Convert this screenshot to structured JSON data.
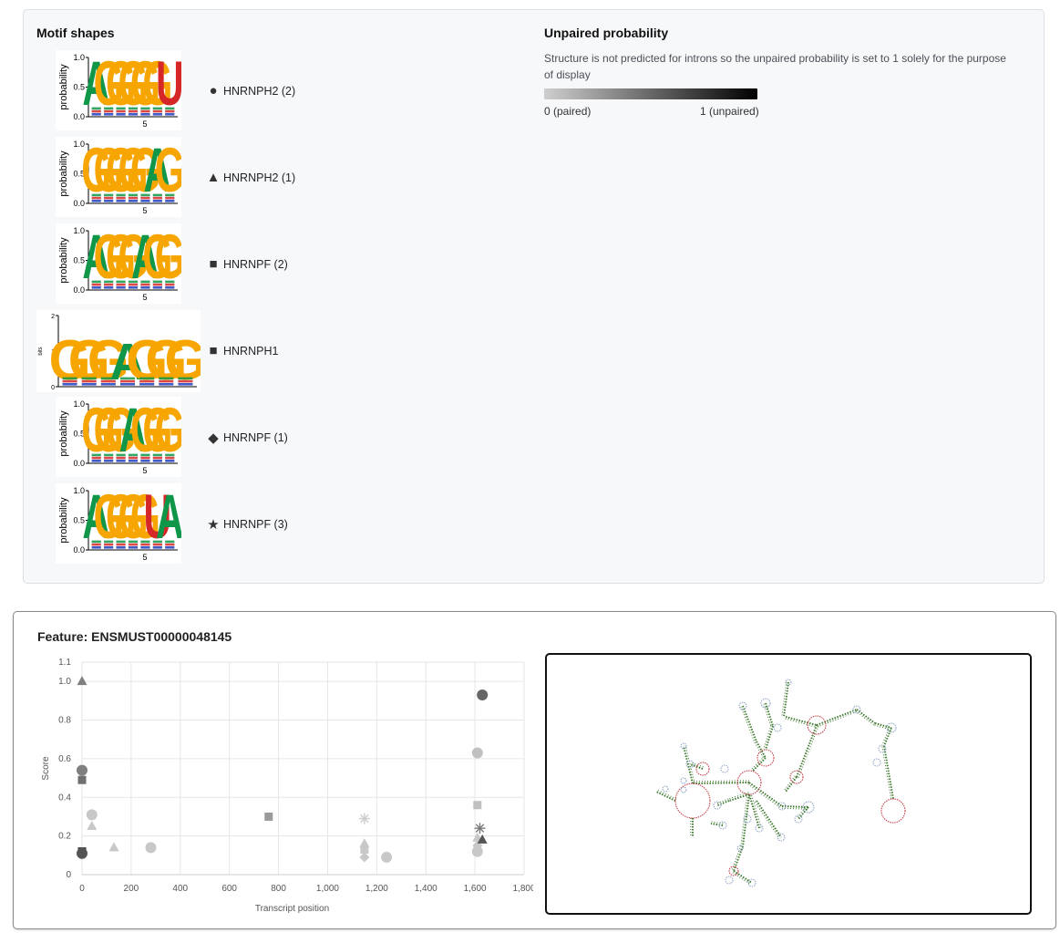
{
  "motif_section": {
    "title": "Motif shapes",
    "motifs": [
      {
        "name": "HNRNPH2 (2)",
        "symbol": "●",
        "logo_type": "probability",
        "axis_label": "probability",
        "ticks": [
          "1.0",
          "0.5",
          "0.0"
        ],
        "x_tick": "5",
        "letters": [
          "A",
          "G",
          "G",
          "G",
          "G",
          "G",
          "U"
        ]
      },
      {
        "name": "HNRNPH2 (1)",
        "symbol": "▲",
        "logo_type": "probability",
        "axis_label": "probability",
        "ticks": [
          "1.0",
          "0.5",
          "0.0"
        ],
        "x_tick": "5",
        "letters": [
          "G",
          "G",
          "G",
          "G",
          "G",
          "A",
          "G"
        ]
      },
      {
        "name": "HNRNPF (2)",
        "symbol": "■",
        "logo_type": "probability",
        "axis_label": "probability",
        "ticks": [
          "1.0",
          "0.5",
          "0.0"
        ],
        "x_tick": "5",
        "letters": [
          "A",
          "G",
          "G",
          "G",
          "A",
          "G",
          "G"
        ]
      },
      {
        "name": "HNRNPH1",
        "symbol": "■",
        "logo_type": "bits",
        "axis_label": "bits",
        "ticks": [
          "2",
          "1",
          "0"
        ],
        "x_tick": "",
        "letters": [
          "G",
          "G",
          "G",
          "A",
          "G",
          "G",
          "G"
        ]
      },
      {
        "name": "HNRNPF (1)",
        "symbol": "◆",
        "logo_type": "probability",
        "axis_label": "probability",
        "ticks": [
          "1.0",
          "0.5",
          "0.0"
        ],
        "x_tick": "5",
        "letters": [
          "G",
          "G",
          "G",
          "A",
          "G",
          "G",
          "G"
        ]
      },
      {
        "name": "HNRNPF (3)",
        "symbol": "★",
        "logo_type": "probability",
        "axis_label": "probability",
        "ticks": [
          "1.0",
          "0.5",
          "0.0"
        ],
        "x_tick": "5",
        "letters": [
          "A",
          "G",
          "G",
          "G",
          "G",
          "U",
          "A"
        ]
      }
    ]
  },
  "unpaired_section": {
    "title": "Unpaired probability",
    "description": "Structure is not predicted for introns so the unpaired probability is set to 1 solely for the purpose of display",
    "min_label": "0 (paired)",
    "max_label": "1 (unpaired)",
    "gradient_start": "#cfcfcf",
    "gradient_end": "#000000"
  },
  "feature": {
    "title": "Feature: ENSMUST00000048145"
  },
  "chart_data": {
    "type": "scatter",
    "xlabel": "Transcript position",
    "ylabel": "Score",
    "xlim": [
      0,
      1800
    ],
    "ylim": [
      0,
      1.1
    ],
    "x_ticks": [
      "0",
      "200",
      "400",
      "600",
      "800",
      "1,000",
      "1,200",
      "1,400",
      "1,600",
      "1,800"
    ],
    "y_ticks": [
      "0",
      "0.2",
      "0.4",
      "0.6",
      "0.8",
      "1.0",
      "1.1"
    ],
    "grid": true,
    "points": [
      {
        "x": 0,
        "y": 1.0,
        "shape": "triangle",
        "color": "#808080"
      },
      {
        "x": 0,
        "y": 0.54,
        "shape": "circle",
        "color": "#808080"
      },
      {
        "x": 0,
        "y": 0.49,
        "shape": "square",
        "color": "#707070"
      },
      {
        "x": 0,
        "y": 0.12,
        "shape": "square",
        "color": "#404040"
      },
      {
        "x": 0,
        "y": 0.11,
        "shape": "circle",
        "color": "#555555"
      },
      {
        "x": 40,
        "y": 0.31,
        "shape": "circle",
        "color": "#c8c8c8"
      },
      {
        "x": 40,
        "y": 0.25,
        "shape": "triangle",
        "color": "#c8c8c8"
      },
      {
        "x": 130,
        "y": 0.14,
        "shape": "triangle",
        "color": "#c8c8c8"
      },
      {
        "x": 280,
        "y": 0.14,
        "shape": "circle",
        "color": "#c8c8c8"
      },
      {
        "x": 760,
        "y": 0.3,
        "shape": "square",
        "color": "#9a9a9a"
      },
      {
        "x": 1150,
        "y": 0.29,
        "shape": "star",
        "color": "#cccccc"
      },
      {
        "x": 1150,
        "y": 0.16,
        "shape": "triangle",
        "color": "#c8c8c8"
      },
      {
        "x": 1150,
        "y": 0.13,
        "shape": "square",
        "color": "#c8c8c8"
      },
      {
        "x": 1150,
        "y": 0.09,
        "shape": "diamond",
        "color": "#c8c8c8"
      },
      {
        "x": 1240,
        "y": 0.09,
        "shape": "circle",
        "color": "#c8c8c8"
      },
      {
        "x": 1610,
        "y": 0.63,
        "shape": "circle",
        "color": "#c0c0c0"
      },
      {
        "x": 1610,
        "y": 0.36,
        "shape": "square",
        "color": "#c0c0c0"
      },
      {
        "x": 1610,
        "y": 0.19,
        "shape": "triangle",
        "color": "#c8c8c8"
      },
      {
        "x": 1610,
        "y": 0.15,
        "shape": "diamond",
        "color": "#c8c8c8"
      },
      {
        "x": 1610,
        "y": 0.12,
        "shape": "circle",
        "color": "#c8c8c8"
      },
      {
        "x": 1620,
        "y": 0.24,
        "shape": "star",
        "color": "#7a7a7a"
      },
      {
        "x": 1630,
        "y": 0.93,
        "shape": "circle",
        "color": "#666666"
      },
      {
        "x": 1630,
        "y": 0.18,
        "shape": "triangle",
        "color": "#555555"
      }
    ]
  },
  "colors": {
    "logo_A": "#109648",
    "logo_G": "#f7a500",
    "logo_U": "#d62728",
    "logo_C": "#1f3fbf",
    "rna_stem": "#3d7a2e",
    "rna_loop": "#c2333d",
    "rna_node": "#8aa0c0"
  }
}
